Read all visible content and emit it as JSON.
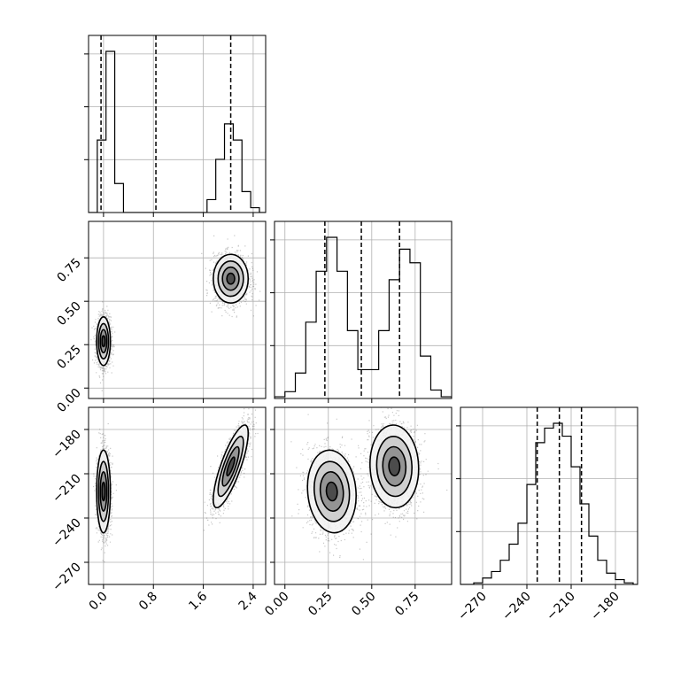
{
  "chart_data": {
    "type": "corner",
    "parameters": [
      {
        "name": "",
        "ticks": [
          0.0,
          0.8,
          1.6,
          2.4
        ],
        "tick_labels": [
          "0.0",
          "0.8",
          "1.6",
          "2.4"
        ],
        "range": [
          -0.24,
          2.6
        ],
        "histogram": {
          "edges": [
            -0.24,
            -0.1,
            0.04,
            0.18,
            0.32,
            1.52,
            1.66,
            1.8,
            1.94,
            2.08,
            2.22,
            2.36,
            2.5,
            2.6
          ],
          "counts": [
            0,
            0.45,
            1.0,
            0.18,
            0,
            0,
            0.08,
            0.33,
            0.55,
            0.45,
            0.13,
            0.03,
            0
          ]
        },
        "quantiles": [
          -0.04,
          0.84,
          2.04
        ]
      },
      {
        "name": "",
        "ticks": [
          0.0,
          0.25,
          0.5,
          0.75
        ],
        "tick_labels": [
          "0.00",
          "0.25",
          "0.50",
          "0.75"
        ],
        "range": [
          -0.06,
          0.96
        ],
        "histogram": {
          "edges": [
            -0.06,
            0.0,
            0.06,
            0.12,
            0.18,
            0.24,
            0.3,
            0.36,
            0.42,
            0.48,
            0.54,
            0.6,
            0.66,
            0.72,
            0.78,
            0.84,
            0.9,
            0.96
          ],
          "counts": [
            0.01,
            0.04,
            0.15,
            0.45,
            0.75,
            0.95,
            0.75,
            0.4,
            0.17,
            0.17,
            0.4,
            0.7,
            0.88,
            0.8,
            0.25,
            0.05,
            0.01
          ]
        },
        "quantiles": [
          0.23,
          0.44,
          0.66
        ]
      },
      {
        "name": "",
        "ticks": [
          -270,
          -240,
          -210,
          -180
        ],
        "tick_labels": [
          "−270",
          "−240",
          "−210",
          "−180"
        ],
        "range": [
          -285,
          -165
        ],
        "histogram": {
          "edges": [
            -285,
            -276,
            -270,
            -264,
            -258,
            -252,
            -246,
            -240,
            -234,
            -228,
            -222,
            -216,
            -210,
            -204,
            -198,
            -192,
            -186,
            -180,
            -174,
            -168,
            -165
          ],
          "counts": [
            0,
            0.01,
            0.04,
            0.08,
            0.15,
            0.25,
            0.38,
            0.62,
            0.88,
            0.97,
            1.0,
            0.92,
            0.73,
            0.5,
            0.3,
            0.15,
            0.07,
            0.03,
            0.01,
            0
          ]
        },
        "quantiles": [
          -233,
          -218,
          -203
        ]
      }
    ],
    "clusters": [
      {
        "p0": 0.0,
        "p1": 0.27,
        "p2": -222,
        "s0": 0.055,
        "s1": 0.07,
        "s2": 14,
        "r12": -0.1
      },
      {
        "p0": 2.04,
        "p1": 0.63,
        "p2": -205,
        "s0": 0.14,
        "s1": 0.07,
        "s2": 14,
        "r02": 0.8,
        "r12": -0.05
      }
    ],
    "grid": true
  }
}
